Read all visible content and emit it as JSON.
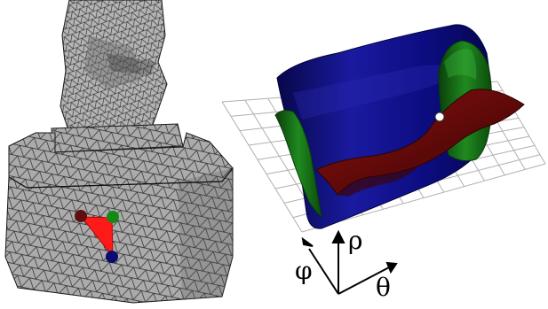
{
  "figure": {
    "axes": {
      "rho": "ρ",
      "phi": "φ",
      "theta": "θ"
    },
    "colors": {
      "mesh_fill": "#a8a8a8",
      "mesh_edge": "#1a1a1a",
      "triangle": "#ff1a1a",
      "point_dark_red": "#5e0f0f",
      "point_green": "#148a14",
      "point_blue": "#0a0a70",
      "surface_blue": "#0a0a7a",
      "surface_green": "#116611",
      "surface_red": "#6a0a0a",
      "grid": "#b0b0b0",
      "marker_white": "#ffffff"
    }
  }
}
